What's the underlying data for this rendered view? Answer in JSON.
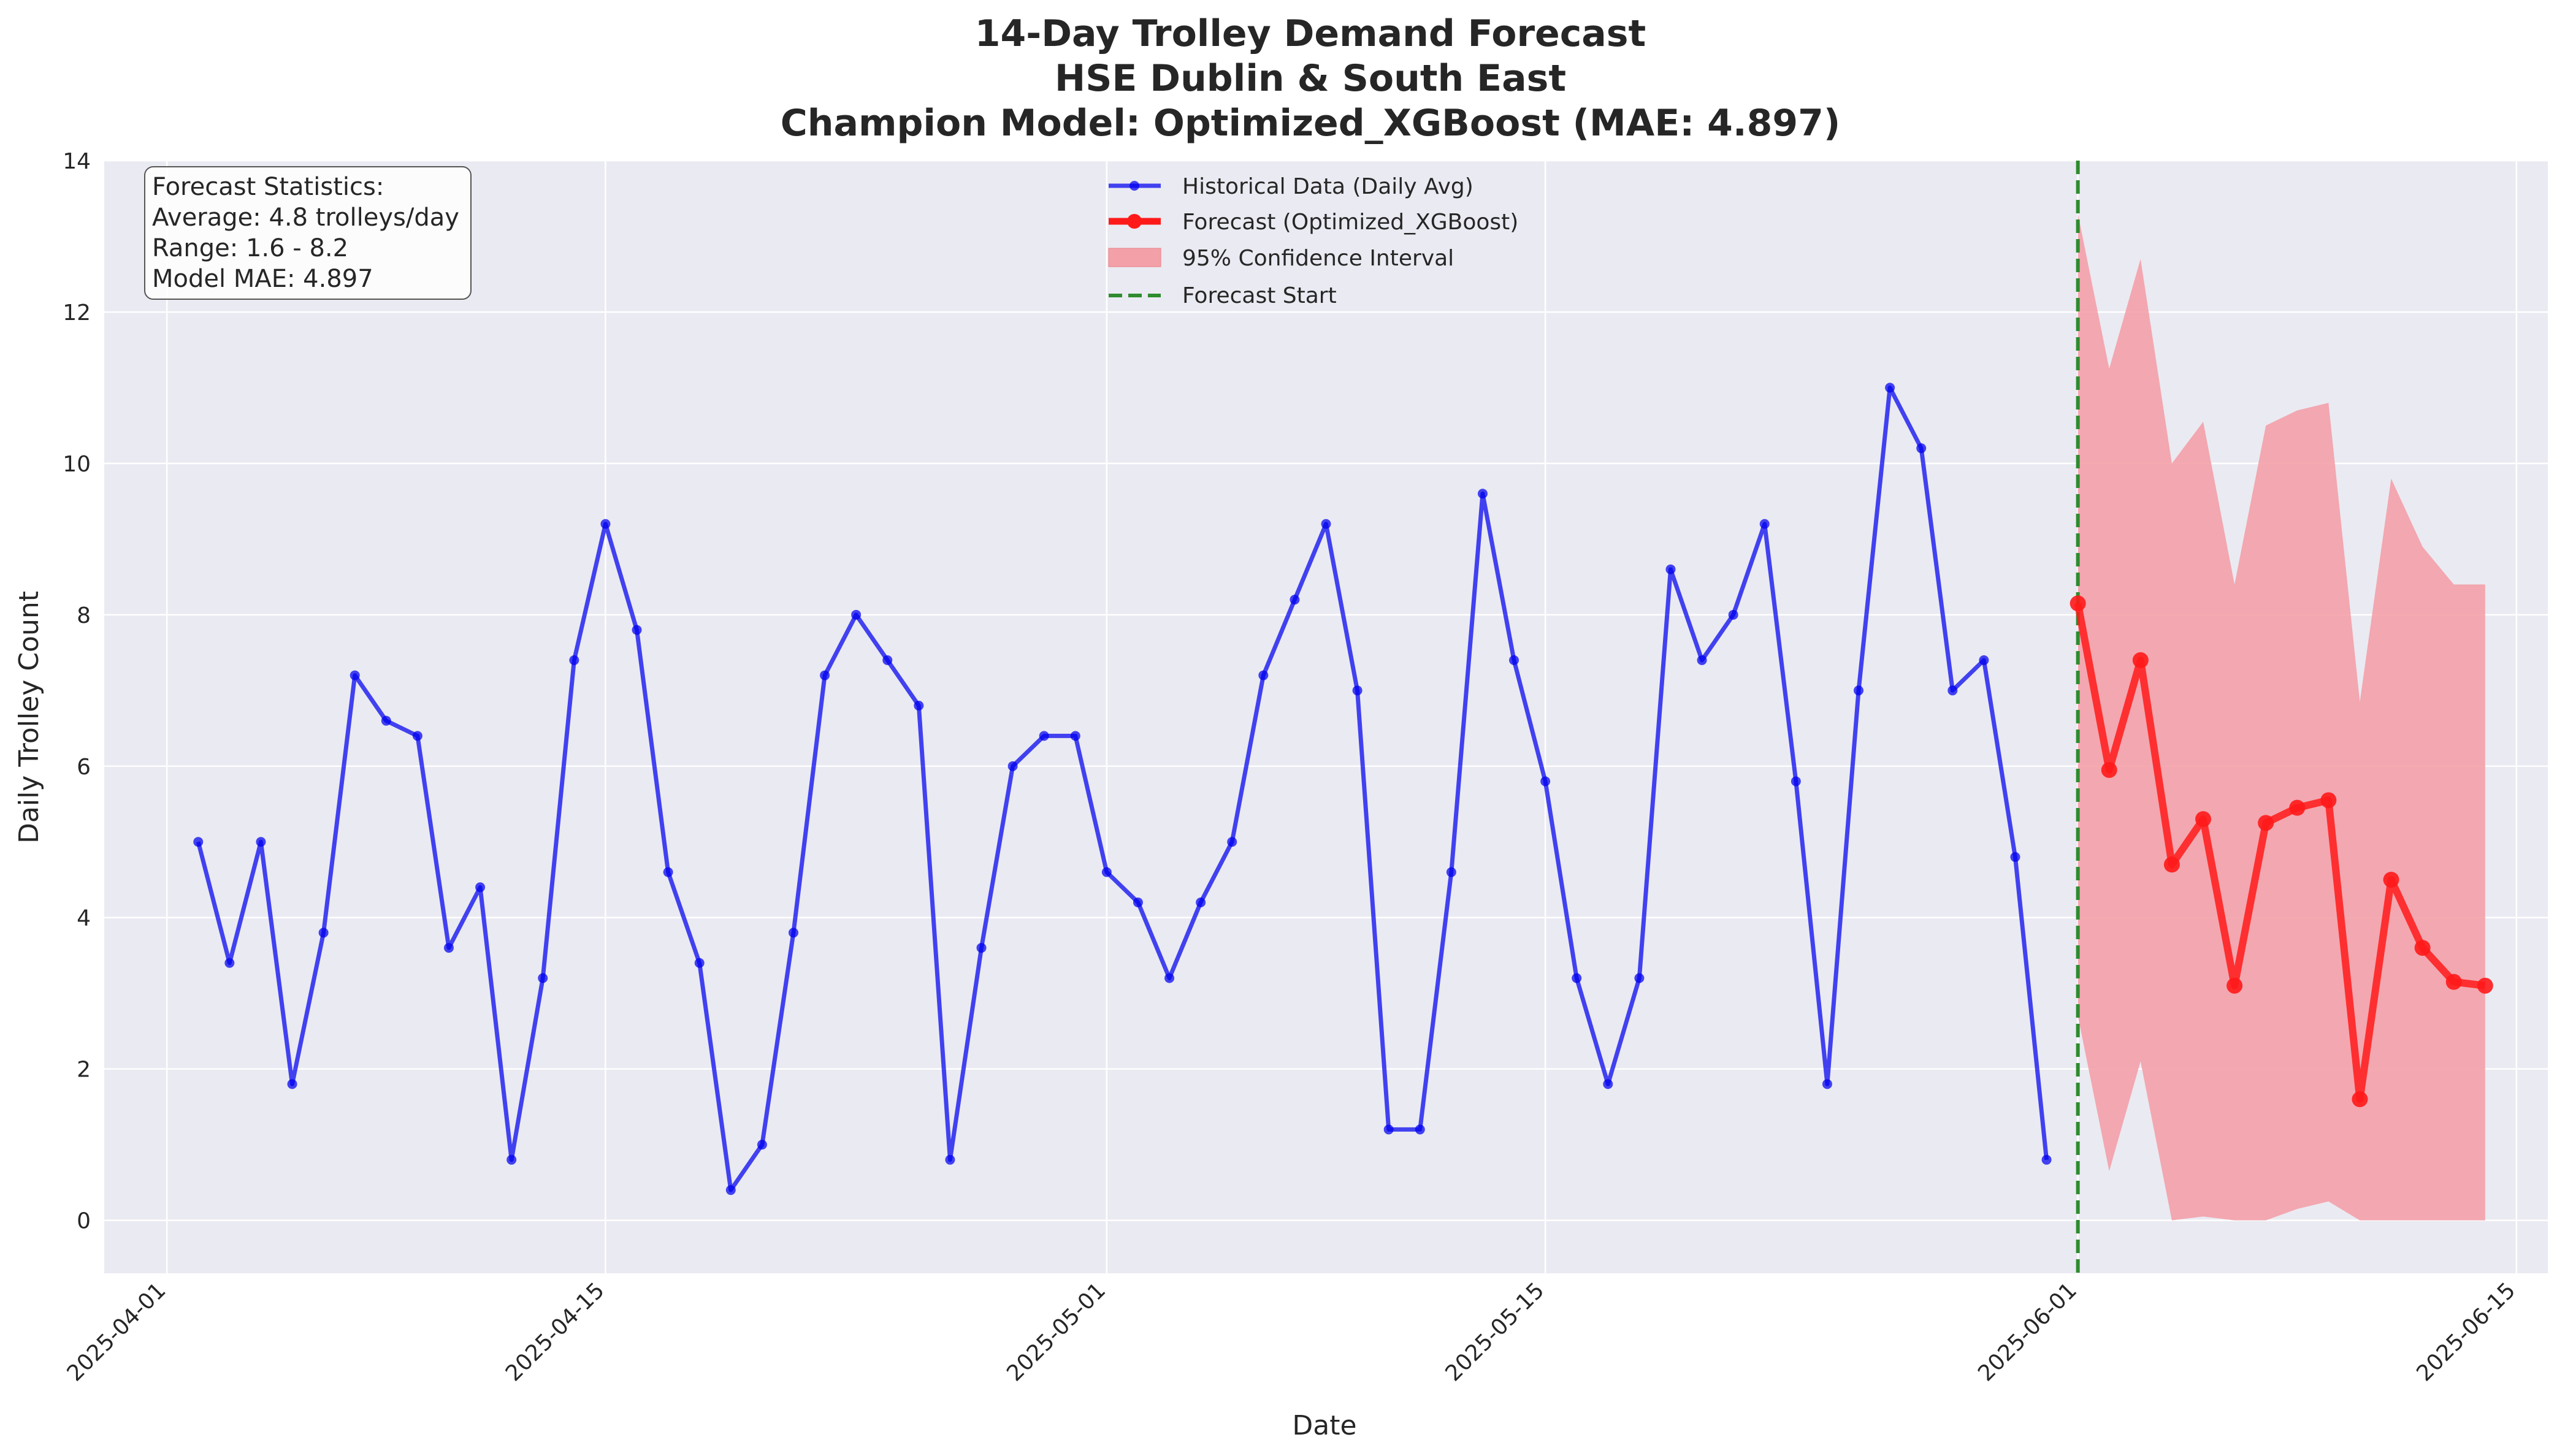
{
  "chart_data": {
    "type": "line",
    "title_lines": [
      "14-Day Trolley Demand Forecast",
      "HSE Dublin & South East",
      "Champion Model: Optimized_XGBoost (MAE: 4.897)"
    ],
    "xlabel": "Date",
    "ylabel": "Daily Trolley Count",
    "ylim": [
      -0.7,
      14
    ],
    "yticks": [
      0,
      2,
      4,
      6,
      8,
      10,
      12,
      14
    ],
    "xlim": [
      "2025-03-30",
      "2025-06-16"
    ],
    "xticks": [
      "2025-04-01",
      "2025-04-15",
      "2025-05-01",
      "2025-05-15",
      "2025-06-01",
      "2025-06-15"
    ],
    "grid": true,
    "legend_position": "top-center",
    "colors": {
      "historical": "#0000ee",
      "forecast": "#ff1a1a",
      "confidence": "#f4a0a8",
      "forecast_start": "#2e8b2e",
      "plot_background": "#eaeaf2"
    },
    "series": [
      {
        "name": "Historical Data (Daily Avg)",
        "style": "line-dots",
        "x": [
          "2025-04-02",
          "2025-04-03",
          "2025-04-04",
          "2025-04-05",
          "2025-04-06",
          "2025-04-07",
          "2025-04-08",
          "2025-04-09",
          "2025-04-10",
          "2025-04-11",
          "2025-04-12",
          "2025-04-13",
          "2025-04-14",
          "2025-04-15",
          "2025-04-16",
          "2025-04-17",
          "2025-04-18",
          "2025-04-19",
          "2025-04-20",
          "2025-04-21",
          "2025-04-22",
          "2025-04-23",
          "2025-04-24",
          "2025-04-25",
          "2025-04-26",
          "2025-04-27",
          "2025-04-28",
          "2025-04-29",
          "2025-04-30",
          "2025-05-01",
          "2025-05-02",
          "2025-05-03",
          "2025-05-04",
          "2025-05-05",
          "2025-05-06",
          "2025-05-07",
          "2025-05-08",
          "2025-05-09",
          "2025-05-10",
          "2025-05-11",
          "2025-05-12",
          "2025-05-13",
          "2025-05-14",
          "2025-05-15",
          "2025-05-16",
          "2025-05-17",
          "2025-05-18",
          "2025-05-19",
          "2025-05-20",
          "2025-05-21",
          "2025-05-22",
          "2025-05-23",
          "2025-05-24",
          "2025-05-25",
          "2025-05-26",
          "2025-05-27",
          "2025-05-28",
          "2025-05-29",
          "2025-05-30",
          "2025-05-31"
        ],
        "y": [
          5.0,
          3.4,
          5.0,
          1.8,
          3.8,
          7.2,
          6.6,
          6.4,
          3.6,
          4.4,
          0.8,
          3.2,
          7.4,
          9.2,
          7.8,
          4.6,
          3.4,
          0.4,
          1.0,
          3.8,
          7.2,
          8.0,
          7.4,
          6.8,
          0.8,
          3.6,
          6.0,
          6.4,
          6.4,
          4.6,
          4.2,
          3.2,
          4.2,
          5.0,
          7.2,
          8.2,
          9.2,
          7.0,
          1.2,
          1.2,
          4.6,
          9.6,
          7.4,
          5.8,
          3.2,
          1.8,
          3.2,
          8.6,
          7.4,
          8.0,
          9.2,
          5.8,
          1.8,
          7.0,
          11.0,
          10.2,
          7.0,
          7.4,
          4.8,
          0.8
        ]
      },
      {
        "name": "Forecast (Optimized_XGBoost)",
        "style": "line-markers",
        "x": [
          "2025-06-01",
          "2025-06-02",
          "2025-06-03",
          "2025-06-04",
          "2025-06-05",
          "2025-06-06",
          "2025-06-07",
          "2025-06-08",
          "2025-06-09",
          "2025-06-10",
          "2025-06-11",
          "2025-06-12",
          "2025-06-13",
          "2025-06-14"
        ],
        "y": [
          8.15,
          5.95,
          7.4,
          4.7,
          5.3,
          3.1,
          5.25,
          5.45,
          5.55,
          1.6,
          4.5,
          3.6,
          3.15,
          3.1
        ]
      },
      {
        "name": "95% Confidence Interval",
        "style": "band",
        "x": [
          "2025-06-01",
          "2025-06-02",
          "2025-06-03",
          "2025-06-04",
          "2025-06-05",
          "2025-06-06",
          "2025-06-07",
          "2025-06-08",
          "2025-06-09",
          "2025-06-10",
          "2025-06-11",
          "2025-06-12",
          "2025-06-13",
          "2025-06-14"
        ],
        "upper": [
          13.3,
          11.25,
          12.7,
          10.0,
          10.55,
          8.4,
          10.5,
          10.7,
          10.8,
          6.85,
          9.8,
          8.9,
          8.4,
          8.4
        ],
        "lower": [
          2.7,
          0.65,
          2.1,
          0.0,
          0.05,
          0.0,
          0.0,
          0.15,
          0.25,
          0.0,
          0.0,
          0.0,
          0.0,
          0.0
        ]
      },
      {
        "name": "Forecast Start",
        "style": "vline-dashed",
        "x": "2025-06-01"
      }
    ],
    "annotation": {
      "lines": [
        "Forecast Statistics:",
        "Average: 4.8 trolleys/day",
        "Range: 1.6 - 8.2",
        "Model MAE: 4.897"
      ]
    }
  }
}
